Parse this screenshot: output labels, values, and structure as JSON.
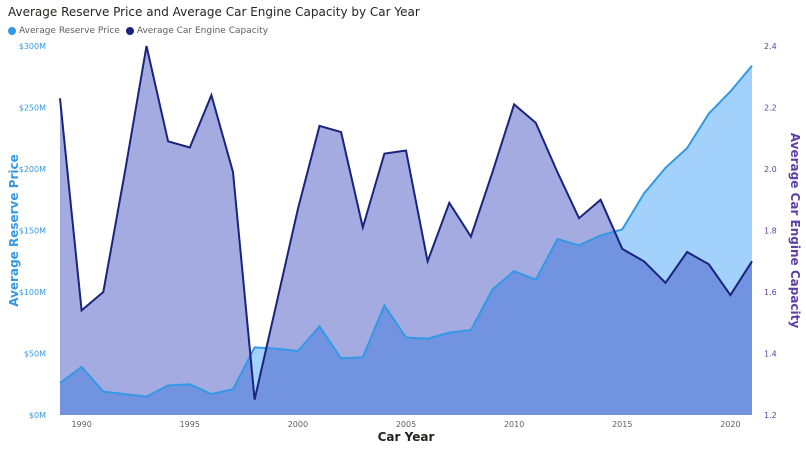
{
  "title": "Average Reserve Price and Average Car Engine Capacity by Car Year",
  "legend": {
    "items": [
      {
        "label": "Average Reserve Price",
        "color": "#3399e6"
      },
      {
        "label": "Average Car Engine Capacity",
        "color": "#1a237e"
      }
    ]
  },
  "chart_data": {
    "type": "area",
    "title": "Average Reserve Price and Average Car Engine Capacity by Car Year",
    "xlabel": "Car Year",
    "ylabel": "Average Reserve Price",
    "y2label": "Average Car Engine Capacity",
    "xlim": [
      1989,
      2021
    ],
    "xticks": [
      1990,
      1995,
      2000,
      2005,
      2010,
      2015,
      2020
    ],
    "ylim": [
      0,
      300
    ],
    "yticks": [
      0,
      50,
      100,
      150,
      200,
      250,
      300
    ],
    "ytick_labels": [
      "$0M",
      "$50M",
      "$100M",
      "$150M",
      "$200M",
      "$250M",
      "$300M"
    ],
    "y2lim": [
      1.2,
      2.4
    ],
    "y2ticks": [
      1.2,
      1.4,
      1.6,
      1.8,
      2.0,
      2.2,
      2.4
    ],
    "y2tick_labels": [
      "1.2",
      "1.4",
      "1.6",
      "1.8",
      "2.0",
      "2.2",
      "2.4"
    ],
    "grid": false,
    "legend_position": "top-left",
    "x": [
      1989,
      1990,
      1991,
      1992,
      1993,
      1994,
      1995,
      1996,
      1997,
      1998,
      1999,
      2000,
      2001,
      2002,
      2003,
      2004,
      2005,
      2006,
      2007,
      2008,
      2009,
      2010,
      2011,
      2012,
      2013,
      2014,
      2015,
      2016,
      2017,
      2018,
      2019,
      2020,
      2021
    ],
    "series": [
      {
        "name": "Average Reserve Price",
        "axis": "left",
        "unit": "$M",
        "color": "#3399e6",
        "fill": "#9dcffb",
        "values": [
          26,
          39,
          19,
          17,
          15,
          24,
          25,
          17,
          21,
          55,
          54,
          52,
          72,
          46,
          47,
          89,
          63,
          62,
          67,
          69,
          102,
          117,
          110,
          143,
          138,
          146,
          151,
          180,
          201,
          217,
          245,
          263,
          284
        ]
      },
      {
        "name": "Average Car Engine Capacity",
        "axis": "right",
        "color": "#1a237e",
        "fill": "#9ea6d8",
        "values": [
          2.23,
          1.54,
          1.6,
          1.99,
          2.4,
          2.09,
          2.07,
          2.24,
          1.99,
          1.25,
          1.56,
          1.87,
          2.14,
          2.12,
          1.81,
          2.05,
          2.06,
          1.7,
          1.89,
          1.78,
          1.99,
          2.21,
          2.15,
          1.99,
          1.84,
          1.9,
          1.74,
          1.7,
          1.63,
          1.73,
          1.69,
          1.59,
          1.7
        ]
      }
    ]
  }
}
